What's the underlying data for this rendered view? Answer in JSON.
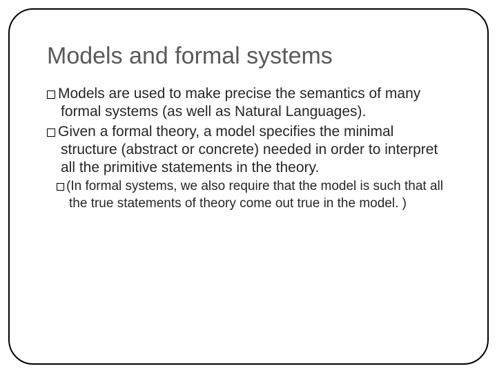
{
  "slide": {
    "title": "Models and formal systems",
    "bullets": [
      "Models are used to make precise the semantics of many formal systems (as well as Natural Languages).",
      "Given a formal theory, a model specifies the minimal structure (abstract or concrete) needed in order to interpret all the primitive statements in the theory."
    ],
    "sub_bullet": "(In formal systems, we also require that the model is such that all the true statements of theory come out true in the model. )"
  },
  "style": {
    "title_color": "#595959",
    "title_fontsize": 34,
    "body_color": "#262626",
    "body_fontsize": 21,
    "sub_fontsize": 19,
    "border_color": "#000000",
    "border_radius": 36,
    "background_color": "#ffffff",
    "marker_shape": "hollow-square"
  }
}
